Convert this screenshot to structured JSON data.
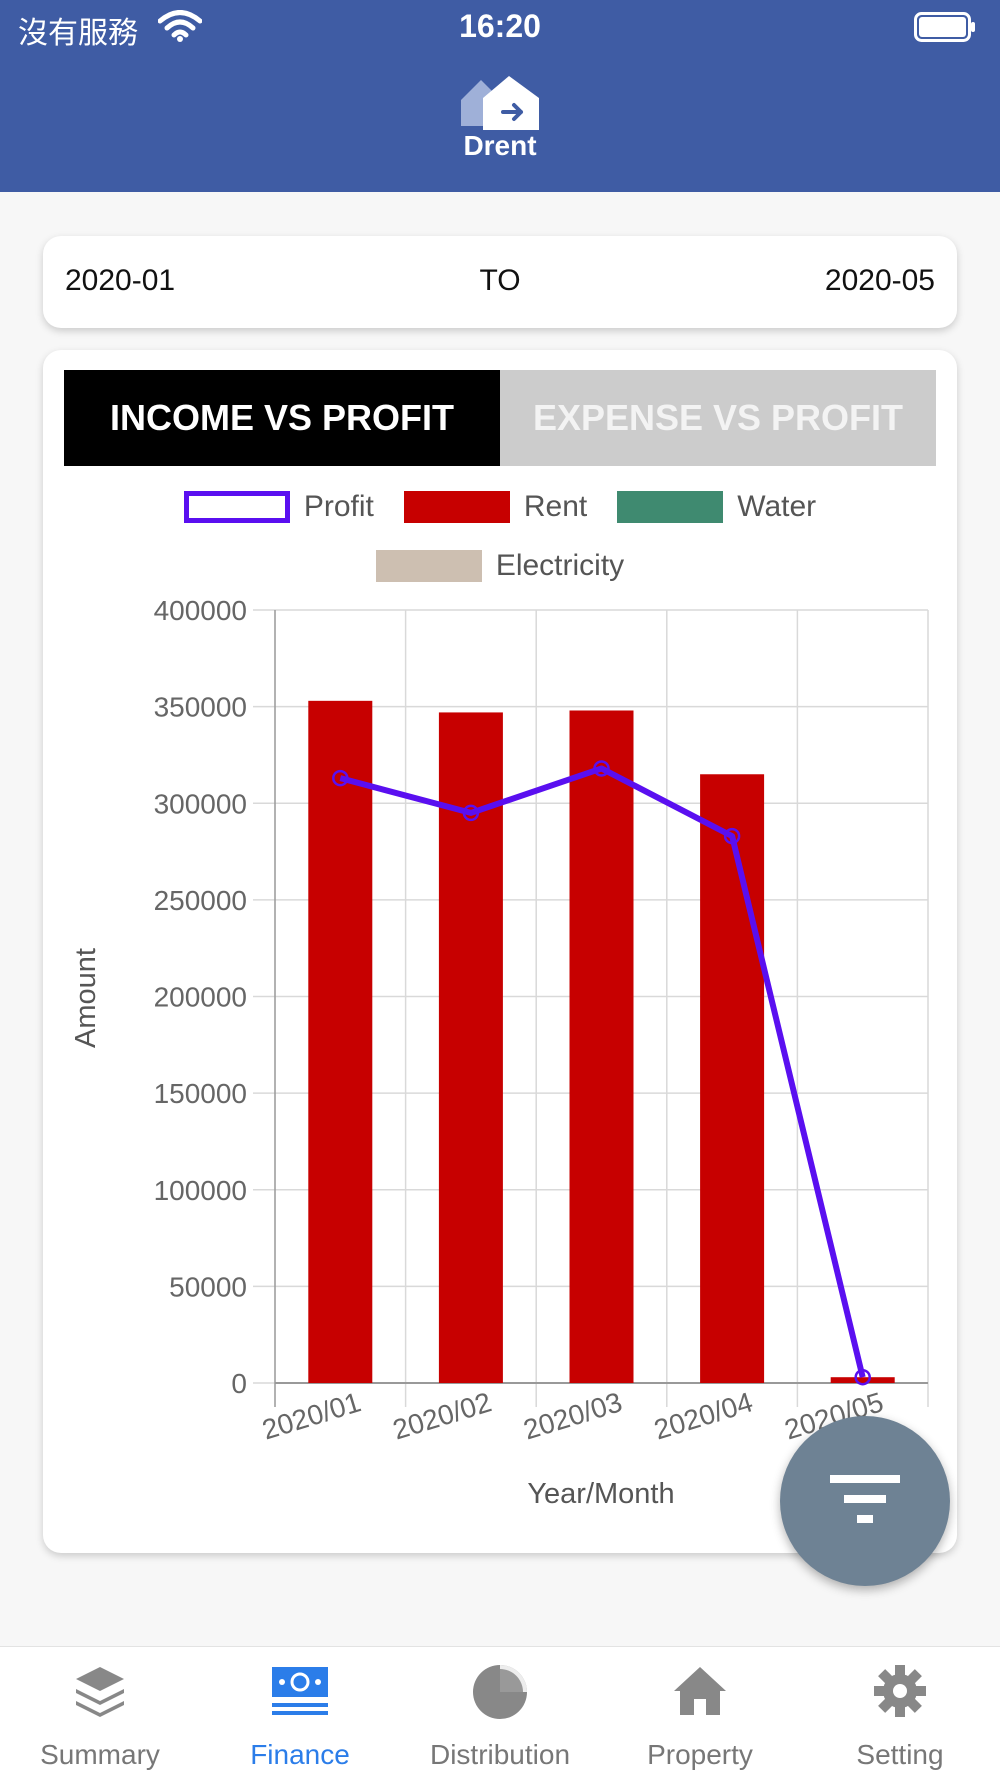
{
  "status_bar": {
    "carrier": "沒有服務",
    "time": "16:20"
  },
  "app": {
    "name": "Drent"
  },
  "date_range": {
    "from": "2020-01",
    "separator": "TO",
    "to": "2020-05"
  },
  "tabs": [
    {
      "label": "INCOME VS PROFIT",
      "active": true
    },
    {
      "label": "EXPENSE VS PROFIT",
      "active": false
    }
  ],
  "legend": [
    {
      "name": "Profit",
      "color": "#5a0ff0",
      "style": "outline"
    },
    {
      "name": "Rent",
      "color": "#c70000",
      "style": "fill"
    },
    {
      "name": "Water",
      "color": "#3f8a70",
      "style": "fill"
    },
    {
      "name": "Electricity",
      "color": "#cdbfb1",
      "style": "fill"
    }
  ],
  "chart_data": {
    "type": "bar",
    "xlabel": "Year/Month",
    "ylabel": "Amount",
    "ylim": [
      0,
      400000
    ],
    "yticks": [
      0,
      50000,
      100000,
      150000,
      200000,
      250000,
      300000,
      350000,
      400000
    ],
    "categories": [
      "2020/01",
      "2020/02",
      "2020/03",
      "2020/04",
      "2020/05"
    ],
    "grid": true,
    "series": [
      {
        "name": "Rent",
        "type": "bar",
        "color": "#c70000",
        "values": [
          353000,
          347000,
          348000,
          315000,
          3000
        ]
      },
      {
        "name": "Water",
        "type": "bar",
        "color": "#3f8a70",
        "values": [
          0,
          0,
          0,
          0,
          0
        ]
      },
      {
        "name": "Electricity",
        "type": "bar",
        "color": "#cdbfb1",
        "values": [
          0,
          0,
          0,
          0,
          0
        ]
      },
      {
        "name": "Profit",
        "type": "line",
        "color": "#5a0ff0",
        "values": [
          313000,
          295000,
          318000,
          283000,
          3000
        ]
      }
    ]
  },
  "bottom_nav": [
    {
      "label": "Summary",
      "icon": "layers-icon",
      "active": false
    },
    {
      "label": "Finance",
      "icon": "money-icon",
      "active": true
    },
    {
      "label": "Distribution",
      "icon": "pie-chart-icon",
      "active": false
    },
    {
      "label": "Property",
      "icon": "home-icon",
      "active": false
    },
    {
      "label": "Setting",
      "icon": "gear-icon",
      "active": false
    }
  ],
  "fab": {
    "icon": "filter-icon"
  }
}
